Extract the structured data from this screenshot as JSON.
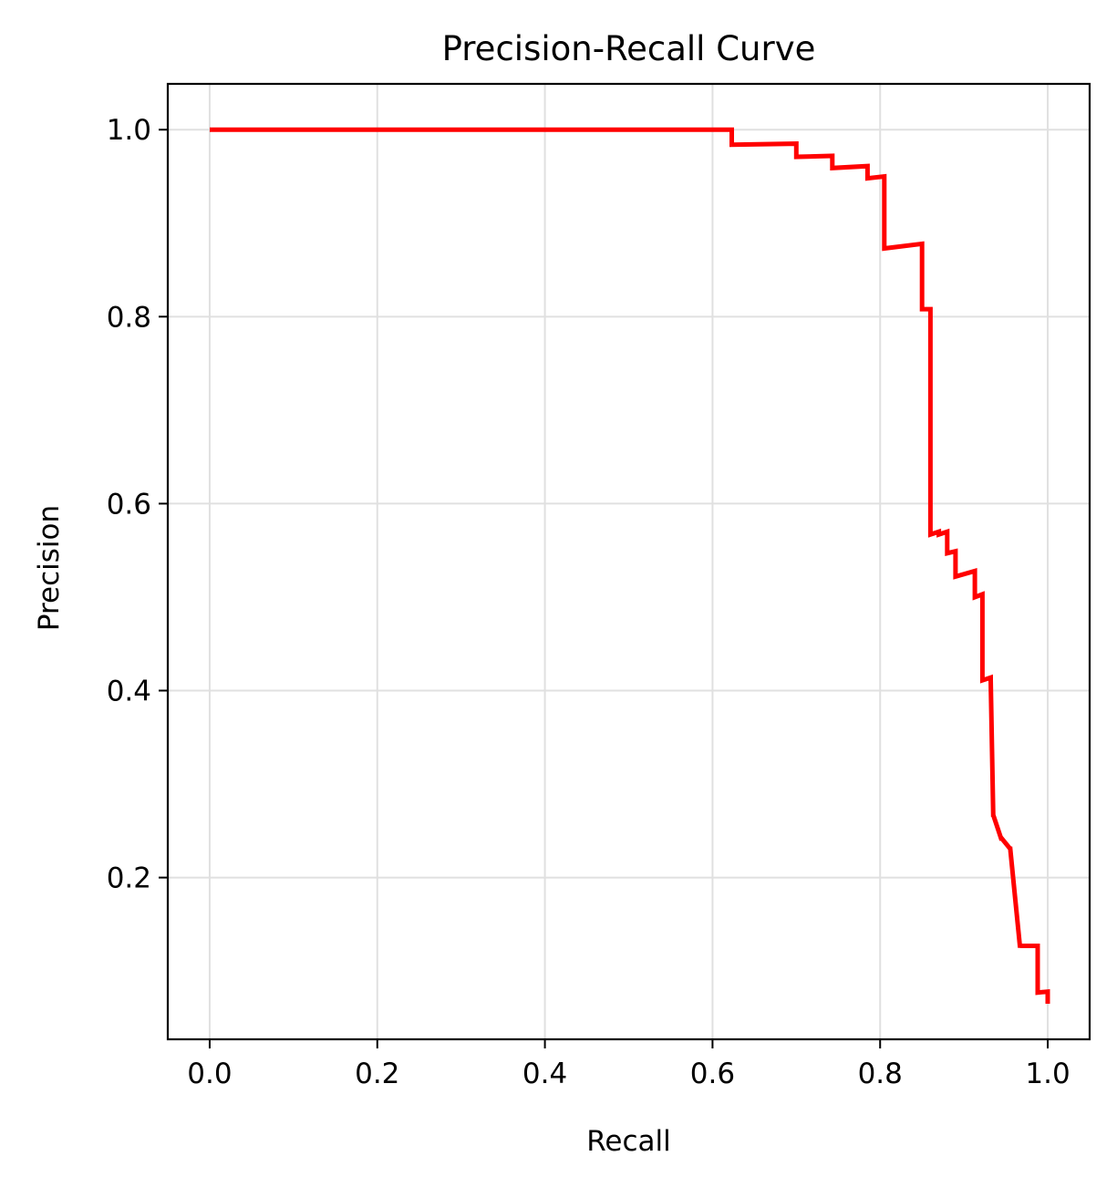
{
  "chart_data": {
    "type": "line",
    "title": "Precision-Recall Curve",
    "xlabel": "Recall",
    "ylabel": "Precision",
    "xlim": [
      -0.05,
      1.05
    ],
    "ylim": [
      0.027,
      1.049
    ],
    "xticks": [
      0.0,
      0.2,
      0.4,
      0.6,
      0.8,
      1.0
    ],
    "xtick_labels": [
      "0.0",
      "0.2",
      "0.4",
      "0.6",
      "0.8",
      "1.0"
    ],
    "yticks": [
      0.2,
      0.4,
      0.6,
      0.8,
      1.0
    ],
    "ytick_labels": [
      "0.2",
      "0.4",
      "0.6",
      "0.8",
      "1.0"
    ],
    "grid": true,
    "legend": false,
    "series": [
      {
        "color": "#ff0000",
        "drawstyle": "steps",
        "x": [
          0.0,
          0.623,
          0.623,
          0.7,
          0.7,
          0.743,
          0.743,
          0.785,
          0.785,
          0.805,
          0.805,
          0.85,
          0.85,
          0.86,
          0.86,
          0.87,
          0.87,
          0.88,
          0.88,
          0.89,
          0.89,
          0.913,
          0.913,
          0.922,
          0.922,
          0.932,
          0.932,
          0.935,
          0.935,
          0.945,
          0.945,
          0.955,
          0.955,
          0.967,
          0.967,
          0.988,
          0.988,
          1.0,
          1.0
        ],
        "y": [
          1.0,
          1.0,
          0.984,
          0.985,
          0.971,
          0.972,
          0.959,
          0.961,
          0.948,
          0.95,
          0.873,
          0.878,
          0.808,
          0.808,
          0.567,
          0.57,
          0.567,
          0.57,
          0.547,
          0.549,
          0.522,
          0.528,
          0.5,
          0.503,
          0.411,
          0.414,
          0.411,
          0.265,
          0.267,
          0.24,
          0.242,
          0.231,
          0.233,
          0.125,
          0.127,
          0.127,
          0.077,
          0.078,
          0.065
        ]
      }
    ]
  }
}
